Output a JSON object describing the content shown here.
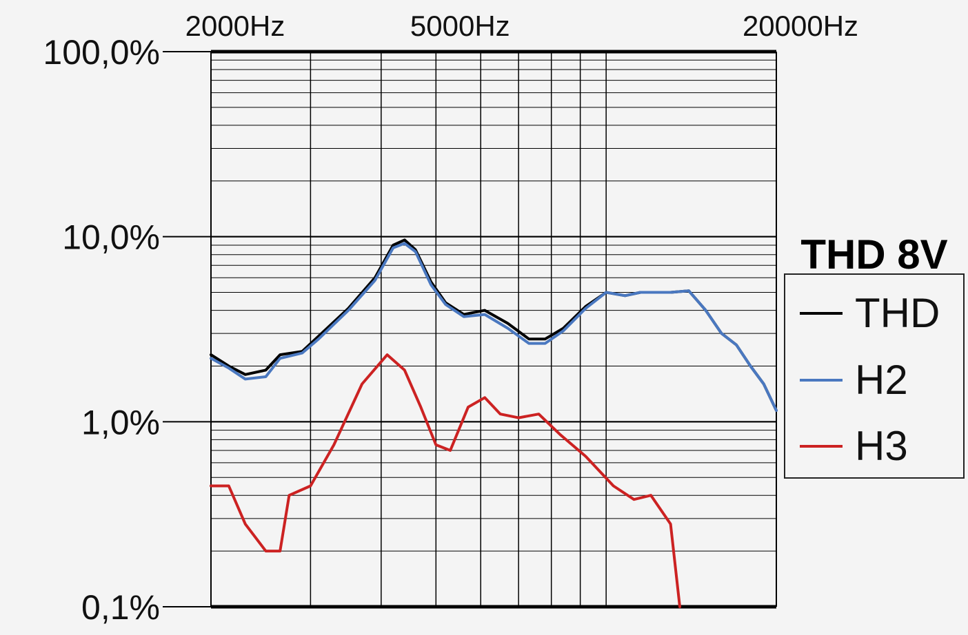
{
  "chart_data": {
    "type": "line",
    "title": "THD 8V",
    "x_scale": "log",
    "y_scale": "log",
    "xlim": [
      2000,
      20000
    ],
    "ylim": [
      0.1,
      100
    ],
    "x_tick_labels": [
      {
        "value": 2000,
        "label": "2000Hz"
      },
      {
        "value": 5000,
        "label": "5000Hz"
      },
      {
        "value": 20000,
        "label": "20000Hz"
      }
    ],
    "y_tick_labels": [
      {
        "value": 100,
        "label": "100,0%"
      },
      {
        "value": 10,
        "label": "10,0%"
      },
      {
        "value": 1,
        "label": "1,0%"
      },
      {
        "value": 0.1,
        "label": "0,1%"
      }
    ],
    "grid": true,
    "legend_placement": "right",
    "series": [
      {
        "name": "THD",
        "color": "#000000",
        "points": [
          [
            2000,
            2.3
          ],
          [
            2150,
            2.0
          ],
          [
            2300,
            1.8
          ],
          [
            2500,
            1.9
          ],
          [
            2650,
            2.3
          ],
          [
            2900,
            2.4
          ],
          [
            3100,
            2.9
          ],
          [
            3500,
            4.1
          ],
          [
            3900,
            6.0
          ],
          [
            4200,
            9.0
          ],
          [
            4400,
            9.6
          ],
          [
            4600,
            8.5
          ],
          [
            4900,
            5.7
          ],
          [
            5200,
            4.4
          ],
          [
            5600,
            3.8
          ],
          [
            6100,
            4.0
          ],
          [
            6700,
            3.4
          ],
          [
            7300,
            2.8
          ],
          [
            7800,
            2.8
          ],
          [
            8400,
            3.2
          ],
          [
            9200,
            4.2
          ],
          [
            10000,
            5.0
          ],
          [
            10800,
            4.8
          ],
          [
            11500,
            5.0
          ],
          [
            13000,
            5.0
          ],
          [
            14000,
            5.1
          ],
          [
            15000,
            4.0
          ],
          [
            16000,
            3.0
          ],
          [
            17000,
            2.6
          ],
          [
            18000,
            2.0
          ],
          [
            19000,
            1.6
          ],
          [
            20000,
            1.15
          ]
        ]
      },
      {
        "name": "H2",
        "color": "#4a78c0",
        "points": [
          [
            2000,
            2.2
          ],
          [
            2150,
            1.95
          ],
          [
            2300,
            1.7
          ],
          [
            2500,
            1.75
          ],
          [
            2650,
            2.2
          ],
          [
            2900,
            2.35
          ],
          [
            3100,
            2.8
          ],
          [
            3500,
            4.0
          ],
          [
            3900,
            5.8
          ],
          [
            4200,
            8.7
          ],
          [
            4400,
            9.2
          ],
          [
            4600,
            8.3
          ],
          [
            4900,
            5.5
          ],
          [
            5200,
            4.3
          ],
          [
            5600,
            3.7
          ],
          [
            6100,
            3.8
          ],
          [
            6700,
            3.2
          ],
          [
            7300,
            2.65
          ],
          [
            7800,
            2.65
          ],
          [
            8400,
            3.1
          ],
          [
            9200,
            4.1
          ],
          [
            10000,
            5.0
          ],
          [
            10800,
            4.8
          ],
          [
            11500,
            5.0
          ],
          [
            13000,
            5.0
          ],
          [
            14000,
            5.1
          ],
          [
            15000,
            4.0
          ],
          [
            16000,
            3.0
          ],
          [
            17000,
            2.6
          ],
          [
            18000,
            2.0
          ],
          [
            19000,
            1.6
          ],
          [
            20000,
            1.15
          ]
        ]
      },
      {
        "name": "H3",
        "color": "#cc2222",
        "points": [
          [
            2000,
            0.45
          ],
          [
            2150,
            0.45
          ],
          [
            2300,
            0.28
          ],
          [
            2500,
            0.2
          ],
          [
            2650,
            0.2
          ],
          [
            2750,
            0.4
          ],
          [
            3000,
            0.45
          ],
          [
            3300,
            0.75
          ],
          [
            3700,
            1.6
          ],
          [
            4100,
            2.3
          ],
          [
            4400,
            1.9
          ],
          [
            4700,
            1.2
          ],
          [
            5000,
            0.75
          ],
          [
            5300,
            0.7
          ],
          [
            5700,
            1.2
          ],
          [
            6100,
            1.35
          ],
          [
            6500,
            1.1
          ],
          [
            7000,
            1.05
          ],
          [
            7600,
            1.1
          ],
          [
            8300,
            0.85
          ],
          [
            9200,
            0.65
          ],
          [
            10300,
            0.45
          ],
          [
            11200,
            0.38
          ],
          [
            12000,
            0.4
          ],
          [
            13000,
            0.28
          ],
          [
            13500,
            0.1
          ]
        ]
      }
    ]
  }
}
